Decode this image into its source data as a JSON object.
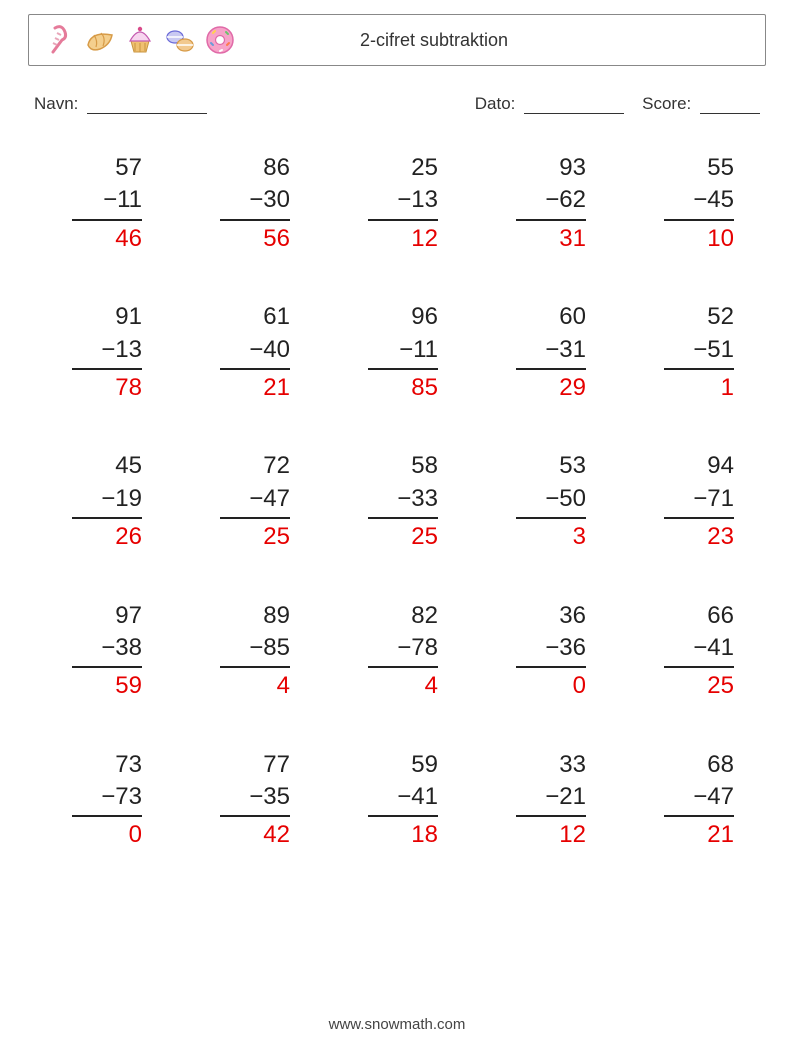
{
  "meta": {
    "title": "2-cifret subtraktion",
    "name_label": "Navn:",
    "date_label": "Dato:",
    "score_label": "Score:",
    "footer": "www.snowmath.com",
    "blank_widths": {
      "name": 120,
      "date": 100,
      "score": 60
    }
  },
  "icons": [
    {
      "name": "candy-cane-icon",
      "stroke": "#e57b9a",
      "fill": "none"
    },
    {
      "name": "croissant-icon",
      "stroke": "#d79b47",
      "fill": "#f4cf8e"
    },
    {
      "name": "cupcake-icon",
      "stroke": "#c45bb0",
      "fill": "#f7d6ef"
    },
    {
      "name": "macaron-icon",
      "stroke": "#6b6bd8",
      "fill": "#c9c9f2"
    },
    {
      "name": "donut-icon",
      "stroke": "#e06aa8",
      "fill": "#f7a3c8"
    }
  ],
  "style": {
    "text_color": "#222222",
    "answer_color": "#e60000",
    "border_color": "#888888",
    "background": "#ffffff",
    "font_size_problem": 24,
    "font_size_title": 18,
    "font_size_info": 17,
    "columns": 5,
    "rows": 5,
    "operator": "−"
  },
  "problems": [
    {
      "a": 57,
      "b": 11,
      "ans": 46
    },
    {
      "a": 86,
      "b": 30,
      "ans": 56
    },
    {
      "a": 25,
      "b": 13,
      "ans": 12
    },
    {
      "a": 93,
      "b": 62,
      "ans": 31
    },
    {
      "a": 55,
      "b": 45,
      "ans": 10
    },
    {
      "a": 91,
      "b": 13,
      "ans": 78
    },
    {
      "a": 61,
      "b": 40,
      "ans": 21
    },
    {
      "a": 96,
      "b": 11,
      "ans": 85
    },
    {
      "a": 60,
      "b": 31,
      "ans": 29
    },
    {
      "a": 52,
      "b": 51,
      "ans": 1
    },
    {
      "a": 45,
      "b": 19,
      "ans": 26
    },
    {
      "a": 72,
      "b": 47,
      "ans": 25
    },
    {
      "a": 58,
      "b": 33,
      "ans": 25
    },
    {
      "a": 53,
      "b": 50,
      "ans": 3
    },
    {
      "a": 94,
      "b": 71,
      "ans": 23
    },
    {
      "a": 97,
      "b": 38,
      "ans": 59
    },
    {
      "a": 89,
      "b": 85,
      "ans": 4
    },
    {
      "a": 82,
      "b": 78,
      "ans": 4
    },
    {
      "a": 36,
      "b": 36,
      "ans": 0
    },
    {
      "a": 66,
      "b": 41,
      "ans": 25
    },
    {
      "a": 73,
      "b": 73,
      "ans": 0
    },
    {
      "a": 77,
      "b": 35,
      "ans": 42
    },
    {
      "a": 59,
      "b": 41,
      "ans": 18
    },
    {
      "a": 33,
      "b": 21,
      "ans": 12
    },
    {
      "a": 68,
      "b": 47,
      "ans": 21
    }
  ]
}
